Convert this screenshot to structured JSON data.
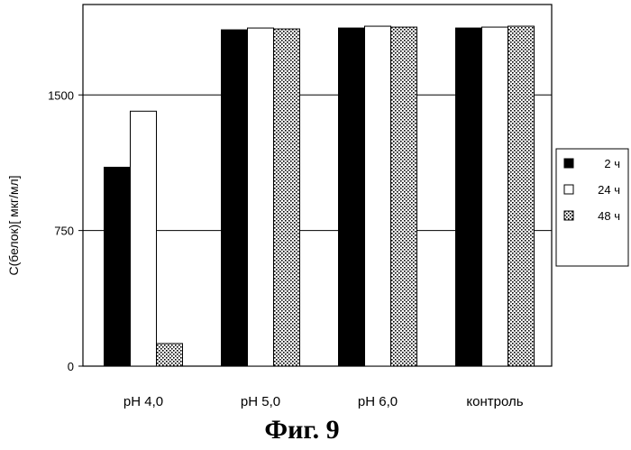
{
  "caption": "Фиг. 9",
  "chart_data": {
    "type": "bar",
    "title": "",
    "xlabel": "",
    "ylabel": "С(белок)[ мкг/мл]",
    "ylim": [
      0,
      2000
    ],
    "yticks": [
      0,
      750,
      1500
    ],
    "grid": true,
    "legend_position": "right",
    "categories": [
      "pH 4,0",
      "pH 5,0",
      "pH 6,0",
      "контроль"
    ],
    "series": [
      {
        "name": "2 ч",
        "values": [
          1100,
          1860,
          1870,
          1870
        ],
        "color": "#000000",
        "pattern": "solid"
      },
      {
        "name": "24 ч",
        "values": [
          1410,
          1870,
          1880,
          1875
        ],
        "color": "#ffffff",
        "pattern": "hollow"
      },
      {
        "name": "48 ч",
        "values": [
          125,
          1865,
          1875,
          1880
        ],
        "color": "#bdbdbd",
        "pattern": "dots"
      }
    ]
  }
}
